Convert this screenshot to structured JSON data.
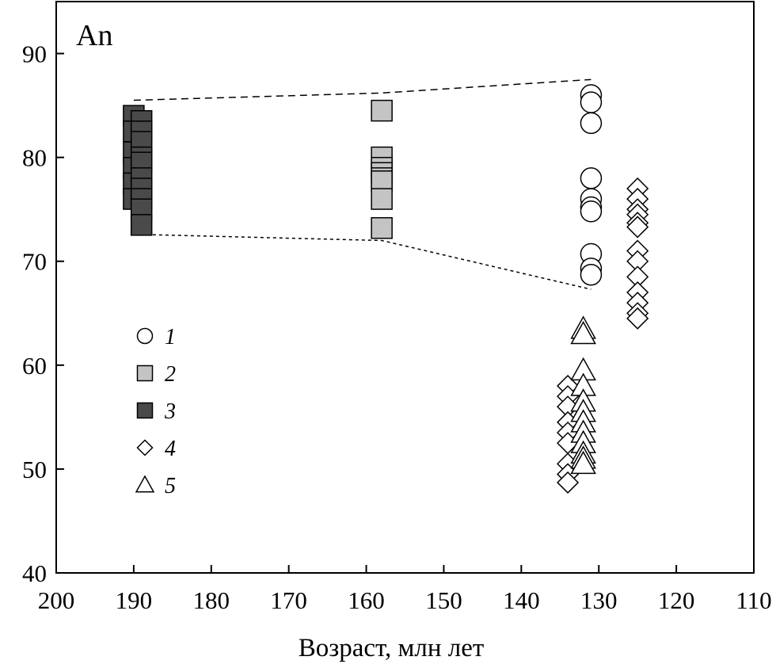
{
  "chart_data": {
    "type": "scatter",
    "panel_label": "An",
    "xlabel": "Возраст, млн лет",
    "ylabel": "",
    "xlim": [
      200,
      110
    ],
    "ylim": [
      40,
      95
    ],
    "x_reversed": true,
    "x_ticks": [
      "200",
      "190",
      "180",
      "170",
      "160",
      "150",
      "140",
      "130",
      "120",
      "110"
    ],
    "y_ticks": [
      "40",
      "50",
      "60",
      "70",
      "80",
      "90"
    ],
    "grid": false,
    "legend_position": "left-middle",
    "series": [
      {
        "name": "1",
        "marker": "circle",
        "fill": "#ffffff",
        "points": [
          [
            131,
            86
          ],
          [
            131,
            85.3
          ],
          [
            131,
            83.3
          ],
          [
            131,
            78
          ],
          [
            131,
            76
          ],
          [
            131,
            75.2
          ],
          [
            131,
            74.8
          ],
          [
            131,
            70.7
          ],
          [
            131,
            69.3
          ],
          [
            131,
            68.7
          ]
        ]
      },
      {
        "name": "2",
        "marker": "square",
        "fill": "#c4c4c4",
        "points": [
          [
            158,
            84.5
          ],
          [
            158,
            80
          ],
          [
            158,
            79
          ],
          [
            158,
            78.5
          ],
          [
            158,
            78
          ],
          [
            158,
            77.7
          ],
          [
            158,
            76
          ],
          [
            158,
            73.2
          ]
        ]
      },
      {
        "name": "3",
        "marker": "square",
        "fill": "#4a4a4a",
        "points": [
          [
            190,
            84
          ],
          [
            190,
            82.5
          ],
          [
            190,
            80.5
          ],
          [
            190,
            79
          ],
          [
            190,
            77.5
          ],
          [
            190,
            76
          ],
          [
            189,
            83.5
          ],
          [
            189,
            82.5
          ],
          [
            189,
            81.5
          ],
          [
            189,
            80
          ],
          [
            189,
            79.5
          ],
          [
            189,
            78
          ],
          [
            189,
            77
          ],
          [
            189,
            76
          ],
          [
            189,
            75
          ],
          [
            189,
            73.5
          ]
        ]
      },
      {
        "name": "4",
        "marker": "diamond",
        "fill": "#ffffff",
        "points": [
          [
            134,
            58
          ],
          [
            134,
            57
          ],
          [
            134,
            56
          ],
          [
            134,
            54.5
          ],
          [
            134,
            53.5
          ],
          [
            134,
            52.5
          ],
          [
            134,
            50.5
          ],
          [
            134,
            49.5
          ],
          [
            134,
            48.7
          ],
          [
            125,
            77
          ],
          [
            125,
            76
          ],
          [
            125,
            75
          ],
          [
            125,
            74.5
          ],
          [
            125,
            73.7
          ],
          [
            125,
            73.3
          ],
          [
            125,
            71
          ],
          [
            125,
            70
          ],
          [
            125,
            68.5
          ],
          [
            125,
            67
          ],
          [
            125,
            66
          ],
          [
            125,
            65
          ],
          [
            125,
            64.5
          ]
        ]
      },
      {
        "name": "5",
        "marker": "triangle",
        "fill": "#ffffff",
        "points": [
          [
            132,
            63.5
          ],
          [
            132,
            63
          ],
          [
            132,
            59.5
          ],
          [
            132,
            58
          ],
          [
            132,
            56.5
          ],
          [
            132,
            55.5
          ],
          [
            132,
            54.5
          ],
          [
            132,
            53.5
          ],
          [
            132,
            52.5
          ],
          [
            132,
            51.5
          ],
          [
            132,
            51
          ],
          [
            132,
            50.5
          ]
        ]
      }
    ],
    "trend_lines": [
      {
        "style": "dashed",
        "points": [
          [
            190,
            85.5
          ],
          [
            158,
            86.2
          ],
          [
            131,
            87.5
          ]
        ]
      },
      {
        "style": "dotted",
        "points": [
          [
            190,
            72.6
          ],
          [
            158,
            72
          ],
          [
            131,
            67.3
          ]
        ]
      }
    ]
  }
}
